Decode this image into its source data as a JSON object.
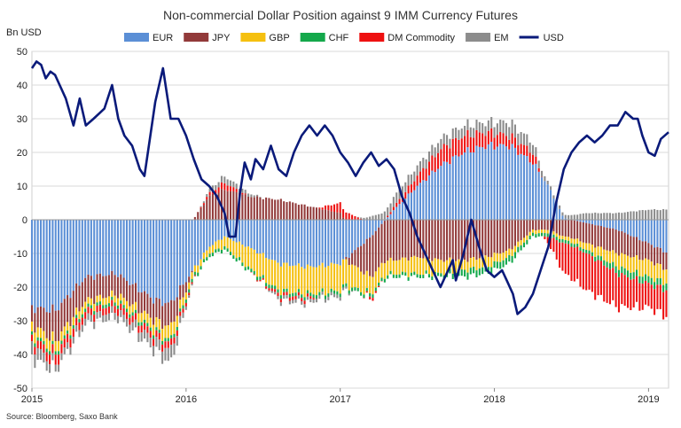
{
  "chart_data": {
    "type": "bar",
    "title": "Non-commercial Dollar Position against 9 IMM Currency Futures",
    "ylabel": "Bn USD",
    "xlabel": "",
    "source": "Source: Bloomberg, Saxo Bank",
    "ylim": [
      -50,
      50
    ],
    "yticks": [
      50,
      40,
      30,
      20,
      10,
      0,
      -10,
      -20,
      -30,
      -40,
      -50
    ],
    "x_range": [
      2015.0,
      2019.13
    ],
    "xticks": [
      {
        "value": 2015,
        "label": "2015"
      },
      {
        "value": 2016,
        "label": "2016"
      },
      {
        "value": 2017,
        "label": "2017"
      },
      {
        "value": 2018,
        "label": "2018"
      },
      {
        "value": 2019,
        "label": "2019"
      }
    ],
    "grid": true,
    "legend_position": "top",
    "stacked": true,
    "series": [
      {
        "name": "EUR",
        "color": "#5b8fd6"
      },
      {
        "name": "JPY",
        "color": "#923a3a"
      },
      {
        "name": "GBP",
        "color": "#f5c00f"
      },
      {
        "name": "CHF",
        "color": "#14a84b"
      },
      {
        "name": "DM Commodity",
        "color": "#ee1111"
      },
      {
        "name": "EM",
        "color": "#8c8c8c"
      }
    ],
    "keypoints": [
      {
        "date": 2015.0,
        "values": [
          -26,
          -5,
          -3,
          -1,
          -2,
          -4
        ]
      },
      {
        "date": 2015.15,
        "values": [
          -27,
          -9,
          -3,
          -1,
          -3,
          -2
        ]
      },
      {
        "date": 2015.35,
        "values": [
          -17,
          -7,
          -2,
          -1,
          -2,
          -2
        ]
      },
      {
        "date": 2015.55,
        "values": [
          -16,
          -6,
          -2,
          -1,
          -2,
          -2
        ]
      },
      {
        "date": 2015.8,
        "values": [
          -24,
          -6,
          -3,
          -1,
          -2,
          -3
        ]
      },
      {
        "date": 2015.9,
        "values": [
          -25,
          -7,
          -4,
          -1,
          -2,
          -4
        ]
      },
      {
        "date": 2016.0,
        "values": [
          -18,
          -3,
          -2,
          -1,
          -1,
          -1
        ]
      },
      {
        "date": 2016.15,
        "values": [
          -8,
          7,
          -2,
          -1,
          1,
          1
        ]
      },
      {
        "date": 2016.25,
        "values": [
          -5,
          9,
          -3,
          -1,
          2,
          2
        ]
      },
      {
        "date": 2016.4,
        "values": [
          -8,
          7,
          -6,
          -1,
          0,
          1
        ]
      },
      {
        "date": 2016.6,
        "values": [
          -13,
          6,
          -8,
          -1,
          -1,
          -1
        ]
      },
      {
        "date": 2016.8,
        "values": [
          -14,
          4,
          -8,
          -1,
          -1,
          -1
        ]
      },
      {
        "date": 2017.0,
        "values": [
          -13,
          2,
          -8,
          -1,
          3,
          -1
        ]
      },
      {
        "date": 2017.2,
        "values": [
          -5,
          -12,
          -5,
          -1,
          -1,
          1
        ]
      },
      {
        "date": 2017.35,
        "values": [
          3,
          -12,
          -4,
          -1,
          1,
          3
        ]
      },
      {
        "date": 2017.5,
        "values": [
          10,
          -11,
          -5,
          -1,
          3,
          3
        ]
      },
      {
        "date": 2017.65,
        "values": [
          16,
          -12,
          -4,
          -1,
          5,
          3
        ]
      },
      {
        "date": 2017.8,
        "values": [
          20,
          -12,
          -3,
          -2,
          5,
          3
        ]
      },
      {
        "date": 2017.95,
        "values": [
          22,
          -11,
          -3,
          -2,
          4,
          3
        ]
      },
      {
        "date": 2018.1,
        "values": [
          22,
          -9,
          -2,
          -2,
          3,
          4
        ]
      },
      {
        "date": 2018.25,
        "values": [
          17,
          -3,
          -1,
          -1,
          3,
          3
        ]
      },
      {
        "date": 2018.35,
        "values": [
          10,
          -3,
          -1,
          -1,
          -2,
          1
        ]
      },
      {
        "date": 2018.45,
        "values": [
          0.5,
          -5,
          -1,
          -1,
          -9,
          1
        ]
      },
      {
        "date": 2018.6,
        "values": [
          -1,
          -6,
          -2,
          -1,
          -11,
          2
        ]
      },
      {
        "date": 2018.8,
        "values": [
          -3,
          -7,
          -4,
          -2,
          -10,
          2
        ]
      },
      {
        "date": 2019.0,
        "values": [
          -7,
          -5,
          -5,
          -2,
          -7,
          3
        ]
      },
      {
        "date": 2019.13,
        "values": [
          -10,
          -5,
          -4,
          -2,
          -8,
          3
        ]
      }
    ],
    "usd_line": {
      "name": "USD",
      "color": "#0a1a7a",
      "points": [
        [
          2015.0,
          45
        ],
        [
          2015.03,
          47
        ],
        [
          2015.06,
          46
        ],
        [
          2015.09,
          42
        ],
        [
          2015.12,
          44
        ],
        [
          2015.15,
          43
        ],
        [
          2015.18,
          40
        ],
        [
          2015.22,
          36
        ],
        [
          2015.27,
          28
        ],
        [
          2015.31,
          36
        ],
        [
          2015.35,
          28
        ],
        [
          2015.4,
          30
        ],
        [
          2015.47,
          33
        ],
        [
          2015.52,
          40
        ],
        [
          2015.56,
          30
        ],
        [
          2015.6,
          25
        ],
        [
          2015.65,
          22
        ],
        [
          2015.7,
          15
        ],
        [
          2015.73,
          13
        ],
        [
          2015.8,
          35
        ],
        [
          2015.85,
          45
        ],
        [
          2015.9,
          30
        ],
        [
          2015.95,
          30
        ],
        [
          2016.0,
          25
        ],
        [
          2016.05,
          18
        ],
        [
          2016.1,
          12
        ],
        [
          2016.15,
          10
        ],
        [
          2016.2,
          7
        ],
        [
          2016.25,
          2
        ],
        [
          2016.28,
          -5
        ],
        [
          2016.32,
          -5
        ],
        [
          2016.35,
          8
        ],
        [
          2016.38,
          17
        ],
        [
          2016.42,
          12
        ],
        [
          2016.45,
          18
        ],
        [
          2016.5,
          15
        ],
        [
          2016.55,
          22
        ],
        [
          2016.6,
          15
        ],
        [
          2016.65,
          13
        ],
        [
          2016.7,
          20
        ],
        [
          2016.75,
          25
        ],
        [
          2016.8,
          28
        ],
        [
          2016.85,
          25
        ],
        [
          2016.9,
          28
        ],
        [
          2016.95,
          25
        ],
        [
          2017.0,
          20
        ],
        [
          2017.05,
          17
        ],
        [
          2017.1,
          13
        ],
        [
          2017.15,
          17
        ],
        [
          2017.2,
          20
        ],
        [
          2017.25,
          16
        ],
        [
          2017.3,
          18
        ],
        [
          2017.35,
          15
        ],
        [
          2017.4,
          7
        ],
        [
          2017.45,
          2
        ],
        [
          2017.5,
          -5
        ],
        [
          2017.55,
          -10
        ],
        [
          2017.6,
          -15
        ],
        [
          2017.65,
          -20
        ],
        [
          2017.7,
          -15
        ],
        [
          2017.73,
          -12
        ],
        [
          2017.75,
          -18
        ],
        [
          2017.8,
          -10
        ],
        [
          2017.85,
          0
        ],
        [
          2017.9,
          -8
        ],
        [
          2017.95,
          -15
        ],
        [
          2018.0,
          -17
        ],
        [
          2018.05,
          -15
        ],
        [
          2018.08,
          -18
        ],
        [
          2018.12,
          -22
        ],
        [
          2018.15,
          -28
        ],
        [
          2018.2,
          -26
        ],
        [
          2018.25,
          -22
        ],
        [
          2018.3,
          -15
        ],
        [
          2018.35,
          -8
        ],
        [
          2018.4,
          5
        ],
        [
          2018.45,
          15
        ],
        [
          2018.5,
          20
        ],
        [
          2018.55,
          23
        ],
        [
          2018.6,
          25
        ],
        [
          2018.65,
          23
        ],
        [
          2018.7,
          25
        ],
        [
          2018.75,
          28
        ],
        [
          2018.8,
          28
        ],
        [
          2018.85,
          32
        ],
        [
          2018.9,
          30
        ],
        [
          2018.93,
          30
        ],
        [
          2018.96,
          25
        ],
        [
          2019.0,
          20
        ],
        [
          2019.04,
          19
        ],
        [
          2019.08,
          24
        ],
        [
          2019.13,
          26
        ]
      ]
    }
  }
}
